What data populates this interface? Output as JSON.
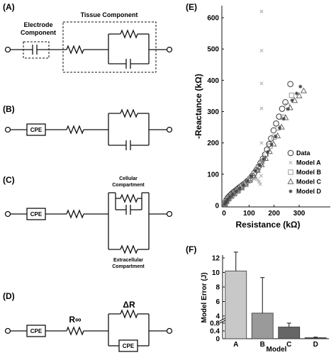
{
  "panels": {
    "A": {
      "label": "(A)",
      "electrode_label_1": "Electrode",
      "electrode_label_2": "Component",
      "tissue_label": "Tissue Component"
    },
    "B": {
      "label": "(B)",
      "cpe": "CPE"
    },
    "C": {
      "label": "(C)",
      "cpe": "CPE",
      "cellular_1": "Cellular",
      "cellular_2": "Compartment",
      "extracellular_1": "Extracellular",
      "extracellular_2": "Compartment"
    },
    "D": {
      "label": "(D)",
      "cpe_left": "CPE",
      "cpe_right": "CPE",
      "r_inf": "R∞",
      "delta_r": "ΔR"
    },
    "E": {
      "label": "(E)"
    },
    "F": {
      "label": "(F)"
    }
  },
  "chart_data": [
    {
      "panel": "E",
      "type": "scatter",
      "xlabel": "Resistance (kΩ)",
      "ylabel": "-Reactance (kΩ)",
      "xlim": [
        -5,
        345
      ],
      "ylim": [
        0,
        640
      ],
      "xticks": [
        0,
        100,
        200,
        300
      ],
      "yticks": [
        0,
        100,
        200,
        300,
        400,
        500,
        600
      ],
      "legend_position": "right",
      "legend": [
        "Data",
        "Model A",
        "Model B",
        "Model C",
        "Model D"
      ],
      "series": [
        {
          "name": "Data",
          "marker": "circle",
          "color": "#333333",
          "x": [
            2,
            4,
            7,
            10,
            14,
            18,
            23,
            28,
            33,
            39,
            45,
            52,
            58,
            64,
            72,
            80,
            88,
            96,
            105,
            113,
            121,
            130,
            138,
            146,
            155,
            164,
            172,
            180,
            188,
            198,
            208,
            220,
            232,
            245,
            265
          ],
          "y": [
            4,
            8,
            13,
            18,
            23,
            27,
            31,
            35,
            39,
            43,
            47,
            51,
            55,
            59,
            64,
            69,
            74,
            80,
            87,
            95,
            104,
            114,
            124,
            136,
            149,
            163,
            179,
            196,
            214,
            240,
            262,
            284,
            309,
            330,
            388
          ]
        },
        {
          "name": "Model A",
          "marker": "x",
          "color": "#aaaaaa",
          "x": [
            2,
            6,
            12,
            20,
            30,
            40,
            50,
            60,
            70,
            80,
            90,
            100,
            110,
            120,
            128,
            135,
            140,
            145,
            148,
            150,
            150,
            150,
            150,
            150,
            150
          ],
          "y": [
            3,
            8,
            14,
            20,
            27,
            34,
            41,
            48,
            55,
            62,
            68,
            74,
            80,
            84,
            86,
            82,
            76,
            68,
            95,
            145,
            200,
            310,
            390,
            495,
            620
          ]
        },
        {
          "name": "Model B",
          "marker": "square",
          "color": "#999999",
          "x": [
            3,
            8,
            14,
            22,
            32,
            44,
            58,
            72,
            88,
            104,
            120,
            136,
            152,
            168,
            184,
            200,
            216,
            234,
            252,
            270
          ],
          "y": [
            5,
            12,
            19,
            26,
            33,
            41,
            50,
            60,
            72,
            86,
            102,
            120,
            141,
            164,
            190,
            218,
            248,
            282,
            318,
            352
          ]
        },
        {
          "name": "Model C",
          "marker": "triangle",
          "color": "#666666",
          "x": [
            4,
            10,
            18,
            28,
            40,
            54,
            70,
            86,
            102,
            118,
            134,
            150,
            166,
            182,
            198,
            214,
            230,
            246,
            264,
            282,
            300,
            318
          ],
          "y": [
            6,
            13,
            21,
            29,
            37,
            46,
            56,
            67,
            80,
            95,
            112,
            130,
            150,
            172,
            196,
            222,
            250,
            280,
            312,
            335,
            350,
            366
          ]
        },
        {
          "name": "Model D",
          "marker": "star",
          "color": "#444444",
          "x": [
            3,
            9,
            16,
            25,
            36,
            49,
            63,
            78,
            94,
            110,
            126,
            142,
            158,
            174,
            190,
            206,
            222,
            238,
            255,
            272,
            290,
            305
          ],
          "y": [
            5,
            12,
            20,
            28,
            36,
            45,
            55,
            66,
            79,
            94,
            111,
            129,
            149,
            171,
            195,
            221,
            248,
            277,
            308,
            336,
            358,
            380
          ]
        }
      ]
    },
    {
      "panel": "F",
      "type": "bar",
      "xlabel": "Model",
      "ylabel": "Model Error (J)",
      "categories": [
        "A",
        "B",
        "C",
        "D"
      ],
      "values": [
        10.2,
        4.4,
        0.6,
        0.05
      ],
      "errors": [
        2.6,
        4.9,
        0.2,
        0.03
      ],
      "colors": [
        "#c8c8c8",
        "#9a9a9a",
        "#666666",
        "#333333"
      ],
      "yticks": [
        0,
        0.4,
        0.8,
        4,
        6,
        8,
        10,
        12
      ],
      "axis_break": [
        0.8,
        4
      ],
      "ylim": [
        0,
        13
      ]
    }
  ]
}
